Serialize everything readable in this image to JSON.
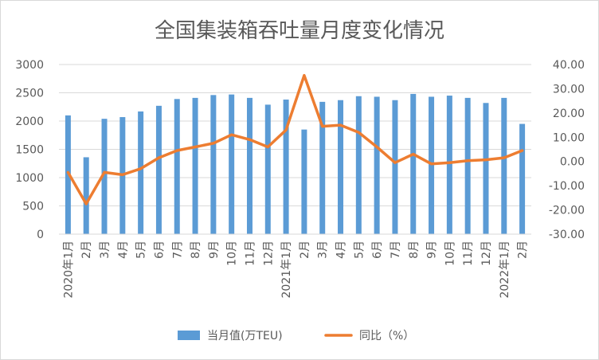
{
  "chart_data": {
    "type": "bar+line",
    "title": "全国集装箱吞吐量月度变化情况",
    "categories": [
      "2020年1月",
      "2月",
      "3月",
      "4月",
      "5月",
      "6月",
      "7月",
      "8月",
      "9月",
      "10月",
      "11月",
      "12月",
      "2021年1月",
      "2月",
      "3月",
      "4月",
      "5月",
      "6月",
      "7月",
      "8月",
      "9月",
      "10月",
      "11月",
      "12月",
      "2022年1月",
      "2月"
    ],
    "series": [
      {
        "name": "当月值(万TEU)",
        "type": "bar",
        "axis": "left",
        "color": "#5b9bd5",
        "values": [
          2100,
          1360,
          2040,
          2070,
          2170,
          2270,
          2390,
          2410,
          2460,
          2470,
          2410,
          2290,
          2380,
          1850,
          2340,
          2370,
          2440,
          2430,
          2370,
          2480,
          2430,
          2450,
          2410,
          2320,
          2410,
          1950
        ]
      },
      {
        "name": "同比（%）",
        "type": "line",
        "axis": "right",
        "color": "#ed7d31",
        "values": [
          -4.5,
          -17.5,
          -4.5,
          -5.5,
          -3,
          1.5,
          4.5,
          6,
          7.5,
          11,
          9,
          6,
          13,
          35.5,
          14.5,
          15,
          12,
          6,
          -0.5,
          3,
          -1,
          -0.5,
          0.3,
          0.7,
          1.5,
          4.5
        ]
      }
    ],
    "y_left": {
      "min": 0,
      "max": 3000,
      "step": 500,
      "ticks": [
        "0",
        "500",
        "1000",
        "1500",
        "2000",
        "2500",
        "3000"
      ]
    },
    "y_right": {
      "min": -30,
      "max": 40,
      "step": 10,
      "ticks": [
        "-30.00",
        "-20.00",
        "-10.00",
        "0.00",
        "10.00",
        "20.00",
        "30.00",
        "40.00"
      ]
    },
    "grid": true,
    "legend": "bottom-center"
  }
}
